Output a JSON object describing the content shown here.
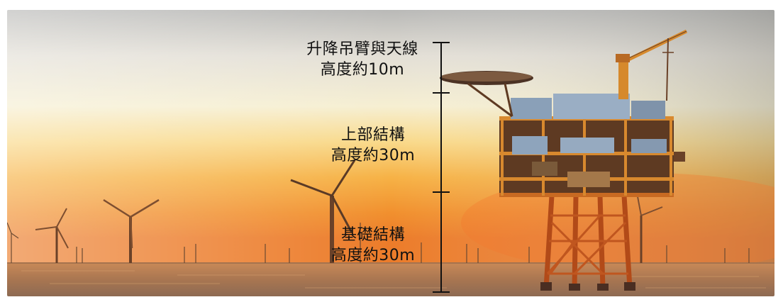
{
  "height_labels": [
    {
      "name": "升降吊臂與天線",
      "height": "高度約10m"
    },
    {
      "name": "上部結構",
      "height": "高度約30m"
    },
    {
      "name": "基礎結構",
      "height": "高度約30m"
    }
  ],
  "colors": {
    "sky_top": "#c9c9c9",
    "sky_glow": "#f7d36a",
    "horizon": "#f08a2c",
    "sea": "#a5704a",
    "platform": "#c9661f",
    "label_text": "#111111",
    "scale_bar": "#111111"
  }
}
